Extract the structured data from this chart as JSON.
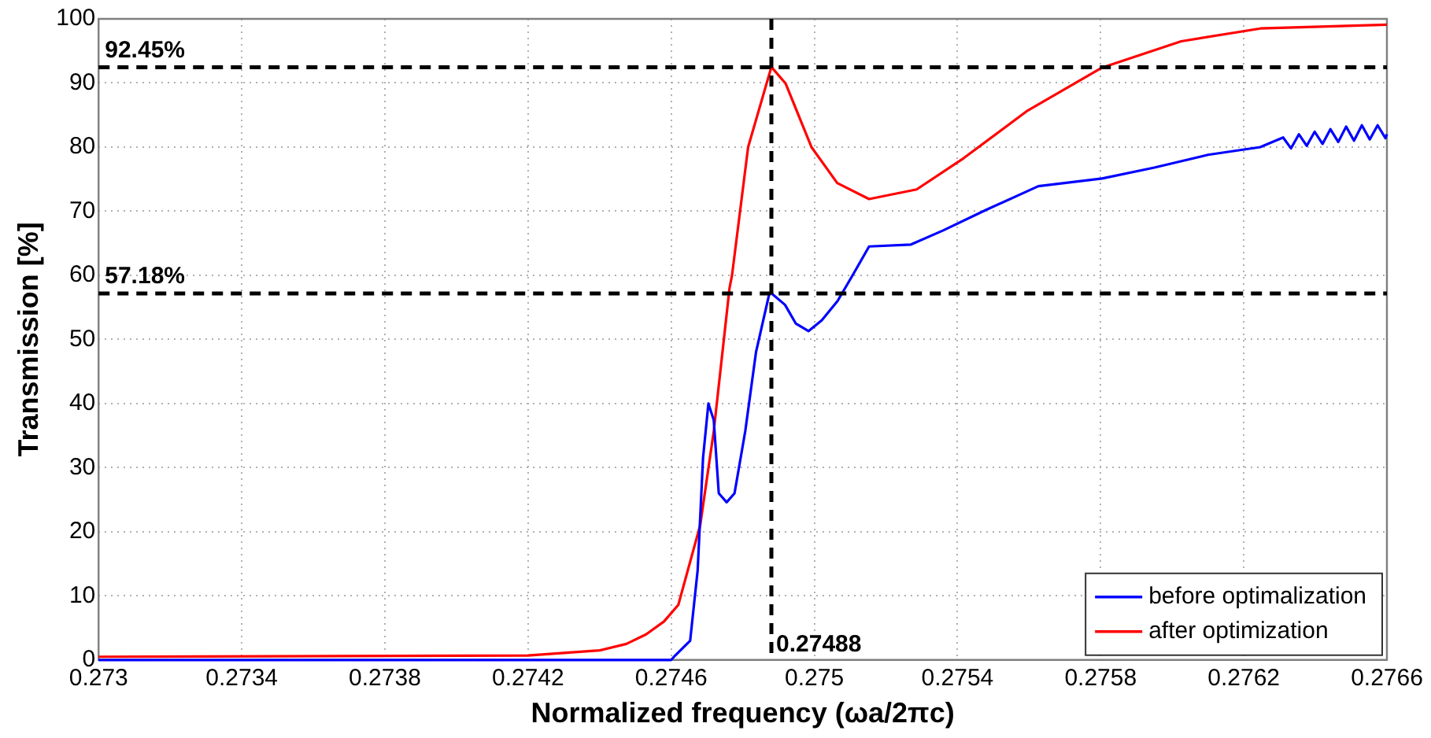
{
  "chart_data": {
    "type": "line",
    "xlabel": "Normalized frequency (ωa/2πc)",
    "ylabel": "Transmission [%]",
    "xlim": [
      0.273,
      0.2766
    ],
    "xticks": [
      0.273,
      0.2734,
      0.2738,
      0.2742,
      0.2746,
      0.275,
      0.2754,
      0.2758,
      0.2762,
      0.2766
    ],
    "ylim": [
      0,
      100
    ],
    "yticks": [
      0,
      10,
      20,
      30,
      40,
      50,
      60,
      70,
      80,
      90,
      100
    ],
    "grid": true,
    "legend": "bottom right",
    "line_style": "solid",
    "marker": "none",
    "ref_lines": [
      {
        "axis": "y",
        "value": 92.45,
        "label": "92.45%",
        "color": "#000000",
        "line_style": "dashed"
      },
      {
        "axis": "y",
        "value": 57.18,
        "label": "57.18%",
        "color": "#000000",
        "line_style": "dashed"
      },
      {
        "axis": "x",
        "value": 0.27488,
        "label": "0.27488",
        "color": "#000000",
        "line_style": "dashed"
      }
    ],
    "series": [
      {
        "name": "before optimalization",
        "color": "#0000ff",
        "x": [
          0.273,
          0.2742,
          0.2746,
          0.274608,
          0.274653,
          0.274674,
          0.274689,
          0.274704,
          0.274719,
          0.274733,
          0.274755,
          0.274777,
          0.274807,
          0.274837,
          0.274874,
          0.27488,
          0.274918,
          0.274948,
          0.274984,
          0.275021,
          0.275065,
          0.27511,
          0.275153,
          0.27527,
          0.27536,
          0.27548,
          0.275626,
          0.275804,
          0.27595,
          0.2761,
          0.276246,
          0.27631,
          0.276332,
          0.276354,
          0.276376,
          0.276398,
          0.27642,
          0.276442,
          0.276464,
          0.276486,
          0.276508,
          0.27653,
          0.276552,
          0.276574,
          0.276596,
          0.2766
        ],
        "values": [
          0,
          0,
          0,
          0.5,
          3,
          14,
          31.5,
          40,
          37.4,
          26,
          24.6,
          26,
          35.7,
          48,
          57.1,
          57.2,
          55.4,
          52.5,
          51.3,
          53,
          56,
          60.3,
          64.5,
          64.8,
          67,
          70.2,
          73.9,
          75.1,
          76.8,
          78.8,
          80,
          81.5,
          79.8,
          82,
          80.2,
          82.4,
          80.5,
          82.8,
          80.8,
          83.2,
          81,
          83.4,
          81.2,
          83.4,
          81.4,
          82
        ]
      },
      {
        "name": "after optimization",
        "color": "#ff0000",
        "x": [
          0.273,
          0.2742,
          0.2744,
          0.274475,
          0.27453,
          0.27458,
          0.27462,
          0.274681,
          0.274719,
          0.274763,
          0.27477,
          0.274815,
          0.27488,
          0.27492,
          0.274992,
          0.275064,
          0.275153,
          0.275286,
          0.275418,
          0.275596,
          0.275804,
          0.276025,
          0.276246,
          0.2766
        ],
        "values": [
          0.5,
          0.7,
          1.5,
          2.5,
          4,
          6,
          8.6,
          21,
          35.7,
          58,
          60,
          80,
          92.5,
          89.9,
          80,
          74.4,
          71.9,
          73.4,
          78.3,
          85.7,
          92.4,
          96.5,
          98.5,
          99.1
        ]
      }
    ]
  }
}
